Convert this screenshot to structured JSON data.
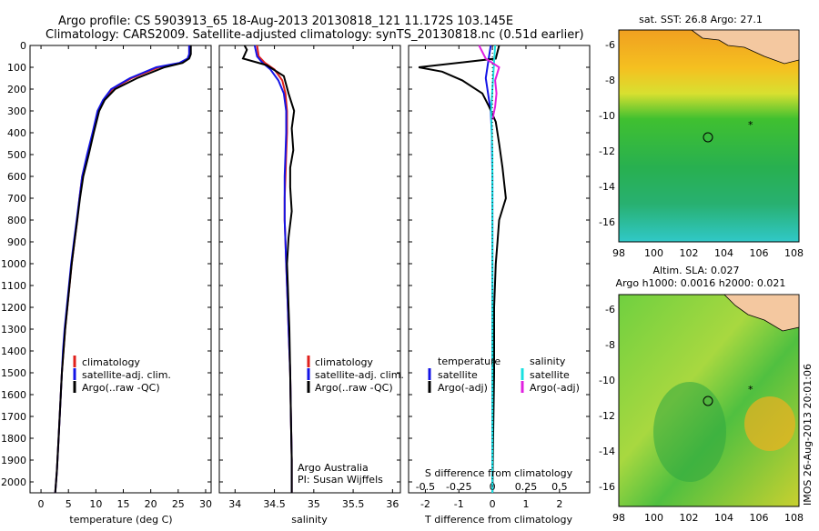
{
  "header": {
    "line1": "Argo profile: CS 5903913_65 18-Aug-2013 20130818_121 11.172S 103.145E",
    "line2": "Climatology: CARS2009. Satellite-adjusted climatology: synTS_20130818.nc (0.51d earlier)"
  },
  "colors": {
    "climatology": "#e0201c",
    "satellite": "#1414e6",
    "argo": "#000000",
    "sal_satellite": "#18e0e0",
    "sal_argo": "#e020e0"
  },
  "depth_ticks": [
    0,
    100,
    200,
    300,
    400,
    500,
    600,
    700,
    800,
    900,
    1000,
    1100,
    1200,
    1300,
    1400,
    1500,
    1600,
    1700,
    1800,
    1900,
    2000
  ],
  "panels": {
    "temperature": {
      "xlabel": "temperature (deg C)",
      "xticks": [
        "0",
        "5",
        "10",
        "15",
        "20",
        "25",
        "30"
      ],
      "legend": [
        "climatology",
        "satellite-adj. clim.",
        "Argo(..raw -QC)"
      ]
    },
    "salinity": {
      "xlabel": "salinity",
      "xticks": [
        "34",
        "34.5",
        "35",
        "35.5",
        "36"
      ],
      "legend": [
        "climatology",
        "satellite-adj. clim.",
        "Argo(..raw -QC)"
      ],
      "credit1": "Argo Australia",
      "credit2": "PI: Susan Wijffels"
    },
    "difference": {
      "xlabel": "T difference from climatology",
      "toplabel": "S difference from climatology",
      "sticks": [
        "-0.5",
        "-0.25",
        "0",
        "0.25",
        "0.5"
      ],
      "tticks": [
        "-2",
        "-1",
        "0",
        "1",
        "2"
      ],
      "legend_t_title": "temperature",
      "legend_s_title": "salinity",
      "legend_t": [
        "satellite",
        "Argo(-adj)"
      ],
      "legend_s": [
        "satellite",
        "Argo(-adj)"
      ]
    }
  },
  "maps": {
    "sst_title": "sat. SST: 26.8 Argo: 27.1",
    "sla_title1": "Altim. SLA: 0.027",
    "sla_title2": "Argo h1000: 0.0016 h2000: 0.021",
    "xticks": [
      "98",
      "100",
      "102",
      "104",
      "106",
      "108"
    ],
    "yticks": [
      "-6",
      "-8",
      "-10",
      "-12",
      "-14",
      "-16"
    ]
  },
  "stamp": "IMOS 26-Aug-2013 20:01:06",
  "chart_data": [
    {
      "type": "line",
      "title": "",
      "xlabel": "temperature (deg C)",
      "xlim": [
        -2,
        31
      ],
      "ylim": [
        2050,
        0
      ],
      "series": [
        {
          "name": "climatology",
          "x": [
            27.0,
            27.0,
            26.8,
            25.5,
            21.5,
            16.5,
            13.0,
            11.5,
            10.5,
            9.5,
            8.5,
            7.5,
            7.0,
            6.6,
            6.1,
            5.6,
            5.2,
            4.8,
            4.4,
            4.1,
            3.8,
            3.6,
            3.4,
            3.2,
            2.9,
            2.6
          ],
          "y": [
            0,
            40,
            60,
            80,
            100,
            150,
            200,
            250,
            300,
            400,
            500,
            600,
            700,
            800,
            900,
            1000,
            1100,
            1200,
            1300,
            1400,
            1500,
            1600,
            1700,
            1800,
            1950,
            2050
          ]
        },
        {
          "name": "satellite-adj. clim.",
          "x": [
            27.0,
            27.0,
            26.7,
            25.2,
            21.0,
            16.2,
            12.8,
            11.3,
            10.3,
            9.4,
            8.4,
            7.5,
            7.0,
            6.5,
            6.0,
            5.5,
            5.1,
            4.7,
            4.3,
            4.0,
            3.8,
            3.6,
            3.4,
            3.2,
            2.9,
            2.6
          ],
          "y": [
            0,
            40,
            60,
            80,
            100,
            150,
            200,
            250,
            300,
            400,
            500,
            600,
            700,
            800,
            900,
            1000,
            1100,
            1200,
            1300,
            1400,
            1500,
            1600,
            1700,
            1800,
            1950,
            2050
          ]
        },
        {
          "name": "Argo(..raw -QC)",
          "x": [
            27.3,
            27.3,
            27.0,
            25.8,
            22.5,
            17.5,
            13.5,
            11.6,
            10.6,
            9.6,
            8.7,
            7.7,
            7.1,
            6.6,
            6.1,
            5.6,
            5.2,
            4.8,
            4.4,
            4.1,
            3.8,
            3.6,
            3.4,
            3.2,
            2.9,
            2.6
          ],
          "y": [
            0,
            40,
            60,
            80,
            100,
            150,
            200,
            250,
            300,
            400,
            500,
            600,
            700,
            800,
            900,
            1000,
            1100,
            1200,
            1300,
            1400,
            1500,
            1600,
            1700,
            1800,
            1950,
            2050
          ]
        }
      ]
    },
    {
      "type": "line",
      "title": "",
      "xlabel": "salinity",
      "xlim": [
        33.8,
        36.1
      ],
      "ylim": [
        2050,
        0
      ],
      "series": [
        {
          "name": "climatology",
          "x": [
            34.28,
            34.3,
            34.38,
            34.5,
            34.6,
            34.64,
            34.66,
            34.66,
            34.65,
            34.64,
            34.63,
            34.63,
            34.64,
            34.65,
            34.66,
            34.67,
            34.68,
            34.7,
            34.71,
            34.72,
            34.72
          ],
          "y": [
            0,
            50,
            80,
            110,
            160,
            220,
            300,
            400,
            500,
            600,
            700,
            800,
            900,
            1000,
            1100,
            1200,
            1300,
            1500,
            1700,
            1900,
            2050
          ]
        },
        {
          "name": "satellite-adj. clim.",
          "x": [
            34.25,
            34.28,
            34.35,
            34.45,
            34.55,
            34.62,
            34.65,
            34.65,
            34.64,
            34.63,
            34.63,
            34.63,
            34.64,
            34.65,
            34.66,
            34.67,
            34.68,
            34.7,
            34.71,
            34.72,
            34.72
          ],
          "y": [
            0,
            50,
            80,
            110,
            160,
            220,
            300,
            400,
            500,
            600,
            700,
            800,
            900,
            1000,
            1100,
            1200,
            1300,
            1500,
            1700,
            1900,
            2050
          ]
        },
        {
          "name": "Argo(..raw -QC)",
          "x": [
            34.12,
            34.15,
            34.1,
            34.4,
            34.62,
            34.68,
            34.75,
            34.72,
            34.74,
            34.7,
            34.7,
            34.72,
            34.68,
            34.66,
            34.67,
            34.68,
            34.69,
            34.7,
            34.71,
            34.72,
            34.72
          ],
          "y": [
            0,
            20,
            60,
            90,
            140,
            220,
            300,
            380,
            480,
            560,
            650,
            760,
            880,
            1000,
            1100,
            1200,
            1300,
            1500,
            1700,
            1900,
            2050
          ]
        }
      ]
    },
    {
      "type": "line",
      "title": "",
      "xlabel": "T difference from climatology",
      "xlim": [
        -2.5,
        2.9
      ],
      "ylim": [
        2050,
        0
      ],
      "series": [
        {
          "name": "satellite",
          "x": [
            -0.05,
            -0.1,
            -0.15,
            -0.2,
            -0.15,
            -0.1,
            -0.05,
            -0.02,
            0,
            0,
            0,
            0,
            0
          ],
          "y": [
            0,
            50,
            100,
            150,
            200,
            250,
            300,
            400,
            600,
            900,
            1300,
            1700,
            2050
          ]
        },
        {
          "name": "Argo(-adj)",
          "x": [
            0.2,
            0.1,
            -2.2,
            -1.5,
            -0.9,
            -0.3,
            -0.1,
            0.1,
            0.2,
            0.3,
            0.4,
            0.2,
            0.15,
            0.1,
            0.05,
            0.05,
            0.02,
            0
          ],
          "y": [
            0,
            60,
            100,
            120,
            160,
            220,
            280,
            350,
            450,
            560,
            700,
            800,
            900,
            1000,
            1200,
            1500,
            1800,
            2050
          ]
        }
      ]
    },
    {
      "type": "line",
      "title": "",
      "xlabel": "S difference from climatology",
      "xlim": [
        -0.625,
        0.725
      ],
      "ylim": [
        2050,
        0
      ],
      "series": [
        {
          "name": "satellite",
          "x": [
            0.02,
            0.01,
            0,
            -0.01,
            0,
            0,
            0,
            0,
            0,
            0,
            0
          ],
          "y": [
            0,
            100,
            200,
            300,
            500,
            700,
            900,
            1200,
            1500,
            1800,
            2050
          ]
        },
        {
          "name": "Argo(-adj)",
          "x": [
            -0.1,
            -0.05,
            0.05,
            0.02,
            0.03,
            0.02,
            0.0
          ],
          "y": [
            0,
            60,
            100,
            160,
            220,
            280,
            340
          ]
        }
      ]
    }
  ]
}
